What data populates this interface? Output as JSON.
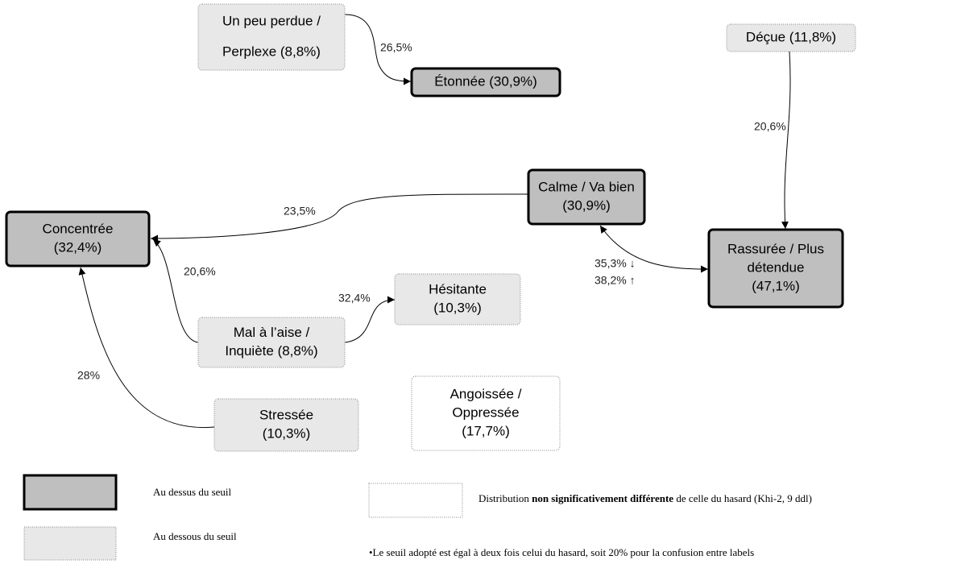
{
  "nodes": [
    {
      "label": [
        "Un peu perdue /",
        "Perplexe (8,8%)"
      ]
    },
    {
      "label": [
        "Étonnée (30,9%)"
      ]
    },
    {
      "label": [
        "Déçue (11,8%)"
      ]
    },
    {
      "label": [
        "Calme / Va bien",
        "(30,9%)"
      ]
    },
    {
      "label": [
        "Concentrée",
        "(32,4%)"
      ]
    },
    {
      "label": [
        "Rassurée / Plus",
        "détendue",
        "(47,1%)"
      ]
    },
    {
      "label": [
        "Hésitante",
        "(10,3%)"
      ]
    },
    {
      "label": [
        "Mal à l’aise /",
        "Inquiète (8,8%)"
      ]
    },
    {
      "label": [
        "Stressée",
        "(10,3%)"
      ]
    },
    {
      "label": [
        "Angoissée /",
        "Oppressée",
        "(17,7%)"
      ]
    }
  ],
  "edges": [
    {
      "label": [
        "26,5%"
      ]
    },
    {
      "label": [
        "20,6%"
      ]
    },
    {
      "label": [
        "23,5%"
      ]
    },
    {
      "label": [
        "20,6%"
      ]
    },
    {
      "label": [
        "32,4%"
      ]
    },
    {
      "label": [
        "28%"
      ]
    },
    {
      "label": [
        "35,3% ↓",
        "38,2% ↑"
      ]
    }
  ],
  "legend": {
    "above": "Au  dessus du seuil",
    "below": "Au dessous du seuil",
    "random": [
      "Distribution ",
      "non significativement différente",
      " de celle du hasard  (Khi-2, 9 ddl)"
    ],
    "note": "•Le seuil adopté est égal à deux fois celui du hasard, soit 20% pour la confusion entre labels"
  }
}
